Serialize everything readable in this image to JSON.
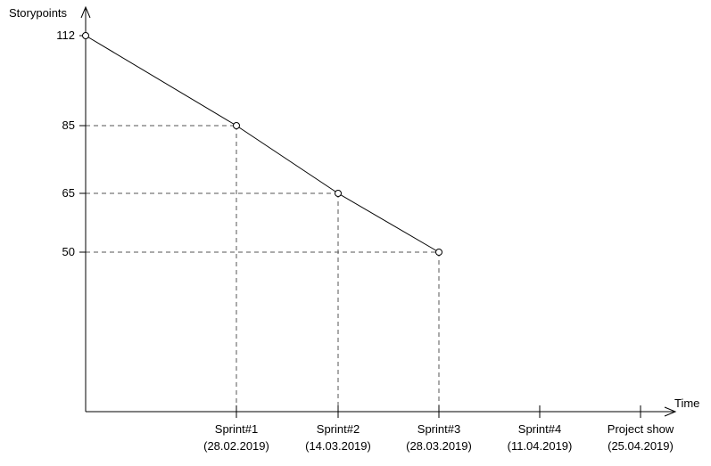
{
  "chart_data": {
    "type": "line",
    "ylabel": "Storypoints",
    "xlabel": "Time",
    "y_ticks": [
      112,
      85,
      65,
      50
    ],
    "ylim": [
      0,
      112
    ],
    "x_ticks": [
      {
        "name": "Sprint#1",
        "date": "(28.02.2019)"
      },
      {
        "name": "Sprint#2",
        "date": "(14.03.2019)"
      },
      {
        "name": "Sprint#3",
        "date": "(28.03.2019)"
      },
      {
        "name": "Sprint#4",
        "date": "(11.04.2019)"
      },
      {
        "name": "Project show",
        "date": "(25.04.2019)"
      }
    ],
    "points": [
      {
        "x": "start",
        "y": 112
      },
      {
        "x": "Sprint#1",
        "y": 85
      },
      {
        "x": "Sprint#2",
        "y": 65
      },
      {
        "x": "Sprint#3",
        "y": 50
      }
    ],
    "grid": false,
    "guide_lines": "dashed",
    "colors": {
      "line": "#000000",
      "axis": "#000000",
      "guide": "#555555"
    }
  }
}
